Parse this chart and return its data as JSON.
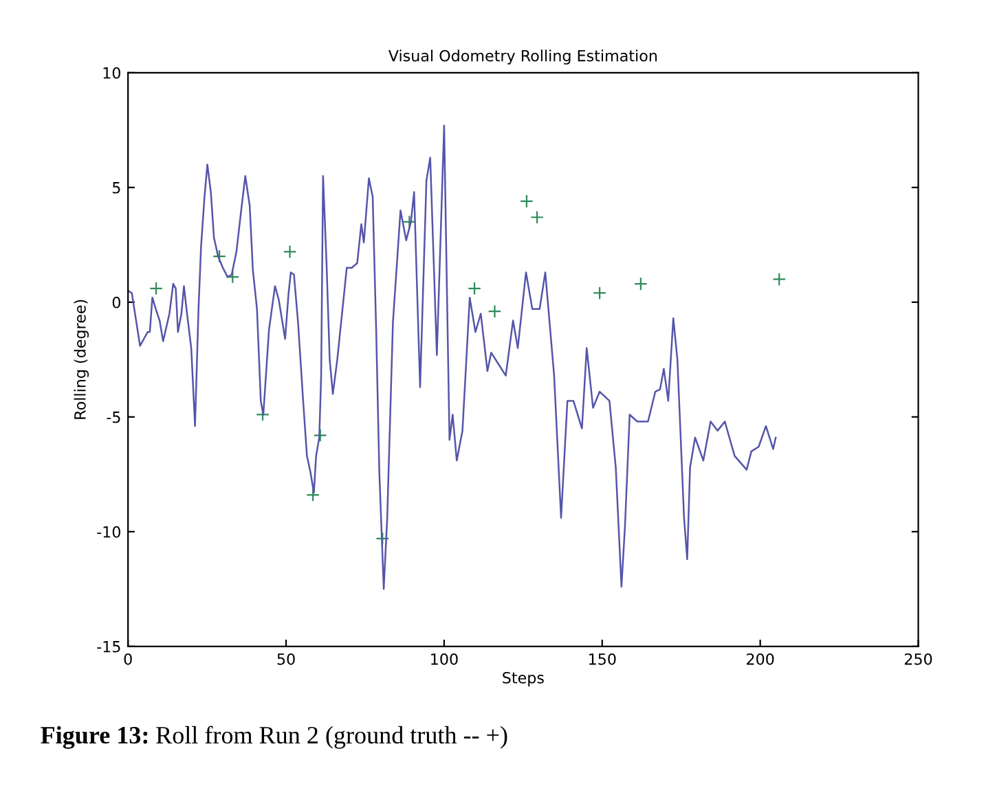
{
  "chart_data": {
    "type": "line",
    "title": "Visual Odometry Rolling Estimation",
    "xlabel": "Steps",
    "ylabel": "Rolling (degree)",
    "xlim": [
      0,
      250
    ],
    "xticks": [
      0,
      50,
      100,
      150,
      200,
      250
    ],
    "ylim": [
      -15,
      10
    ],
    "yticks": [
      -15,
      -10,
      -5,
      0,
      5,
      10
    ],
    "grid": false,
    "annotations": [
      "Figure 13: Roll from Run 2 (ground truth -- +)"
    ],
    "series": [
      {
        "color": "#5555aa",
        "marker": "none",
        "x": [
          0,
          1.2,
          3.8,
          6.2,
          6.9,
          7.7,
          8.8,
          10,
          11.1,
          13.1,
          14.3,
          15.1,
          15.8,
          16.9,
          17.7,
          18.5,
          20,
          21.2,
          22.3,
          23.1,
          24.2,
          25.1,
          26.2,
          27.2,
          28.5,
          30,
          31.5,
          32.8,
          34.3,
          35.8,
          37.1,
          38.5,
          39.5,
          40.8,
          42,
          42.8,
          44.6,
          46.5,
          47.7,
          49.7,
          50.8,
          51.5,
          52.5,
          53.8,
          55.4,
          56.6,
          57.7,
          58.8,
          59.5,
          60.5,
          61.1,
          61.7,
          62.8,
          63.8,
          64.8,
          66.2,
          67.7,
          69.2,
          70.8,
          72.5,
          73.8,
          74.6,
          76.2,
          77.4,
          78.5,
          79.5,
          80.9,
          82,
          83.8,
          86.2,
          88,
          89.5,
          90.5,
          92.4,
          94.4,
          95.6,
          97.7,
          100,
          101.7,
          102.7,
          104,
          105.8,
          108.1,
          109.9,
          111.6,
          113.7,
          114.9,
          117.2,
          119.5,
          121.8,
          123.3,
          125.9,
          127.9,
          130.2,
          132,
          134.8,
          137,
          139,
          140.9,
          143.6,
          145.1,
          147.1,
          149.2,
          152.3,
          154.3,
          156.1,
          157.2,
          158.7,
          161.1,
          164.5,
          166.8,
          168.3,
          169.5,
          170.9,
          172.5,
          173.8,
          175.9,
          176.9,
          177.8,
          179.4,
          182,
          184.3,
          186.5,
          188.8,
          191.9,
          195.7,
          197.2,
          199.5,
          201.8,
          204.1,
          204.9
        ],
        "values": [
          0.5,
          0.4,
          -1.9,
          -1.3,
          -1.3,
          0.2,
          -0.3,
          -0.8,
          -1.7,
          -0.5,
          0.8,
          0.6,
          -1.3,
          -0.5,
          0.7,
          -0.3,
          -2,
          -5.4,
          -0.3,
          2.4,
          4.6,
          6.0,
          4.8,
          2.8,
          2.0,
          1.5,
          1.1,
          1.2,
          2.2,
          4.0,
          5.5,
          4.2,
          1.4,
          -0.3,
          -4.3,
          -4.9,
          -1.2,
          0.7,
          0.1,
          -1.6,
          0.4,
          1.3,
          1.2,
          -0.9,
          -4.3,
          -6.7,
          -7.4,
          -8.3,
          -6.7,
          -5.9,
          -3.2,
          5.5,
          1.7,
          -2.5,
          -4.0,
          -2.5,
          -0.5,
          1.5,
          1.5,
          1.7,
          3.4,
          2.6,
          5.4,
          4.6,
          -1.2,
          -7.4,
          -12.5,
          -9.4,
          -0.9,
          4.0,
          2.7,
          3.5,
          4.8,
          -3.7,
          5.3,
          6.3,
          -2.3,
          7.7,
          -6.0,
          -4.9,
          -6.9,
          -5.6,
          0.2,
          -1.3,
          -0.5,
          -3.0,
          -2.2,
          -2.7,
          -3.2,
          -0.8,
          -2.0,
          1.3,
          -0.3,
          -0.3,
          1.3,
          -3.2,
          -9.4,
          -4.3,
          -4.3,
          -5.5,
          -2.0,
          -4.6,
          -3.9,
          -4.3,
          -7.2,
          -12.4,
          -9.8,
          -4.9,
          -5.2,
          -5.2,
          -3.9,
          -3.8,
          -2.9,
          -4.3,
          -0.7,
          -2.5,
          -9.4,
          -11.2,
          -7.2,
          -5.9,
          -6.9,
          -5.2,
          -5.6,
          -5.2,
          -6.7,
          -7.3,
          -6.5,
          -6.3,
          -5.4,
          -6.4,
          -5.9
        ]
      },
      {
        "type": "scatter",
        "color": "#2e8b57",
        "marker": "cross",
        "x": [
          8.9,
          28.9,
          33.1,
          42.6,
          51.2,
          58.5,
          60.8,
          80.5,
          89,
          109.6,
          116,
          126.1,
          129.4,
          149.2,
          162.2,
          206
        ],
        "values": [
          0.6,
          2.0,
          1.1,
          -4.9,
          2.2,
          -8.4,
          -5.8,
          -10.3,
          3.5,
          0.6,
          -0.4,
          4.4,
          3.7,
          0.4,
          0.8,
          1.0
        ]
      }
    ]
  }
}
